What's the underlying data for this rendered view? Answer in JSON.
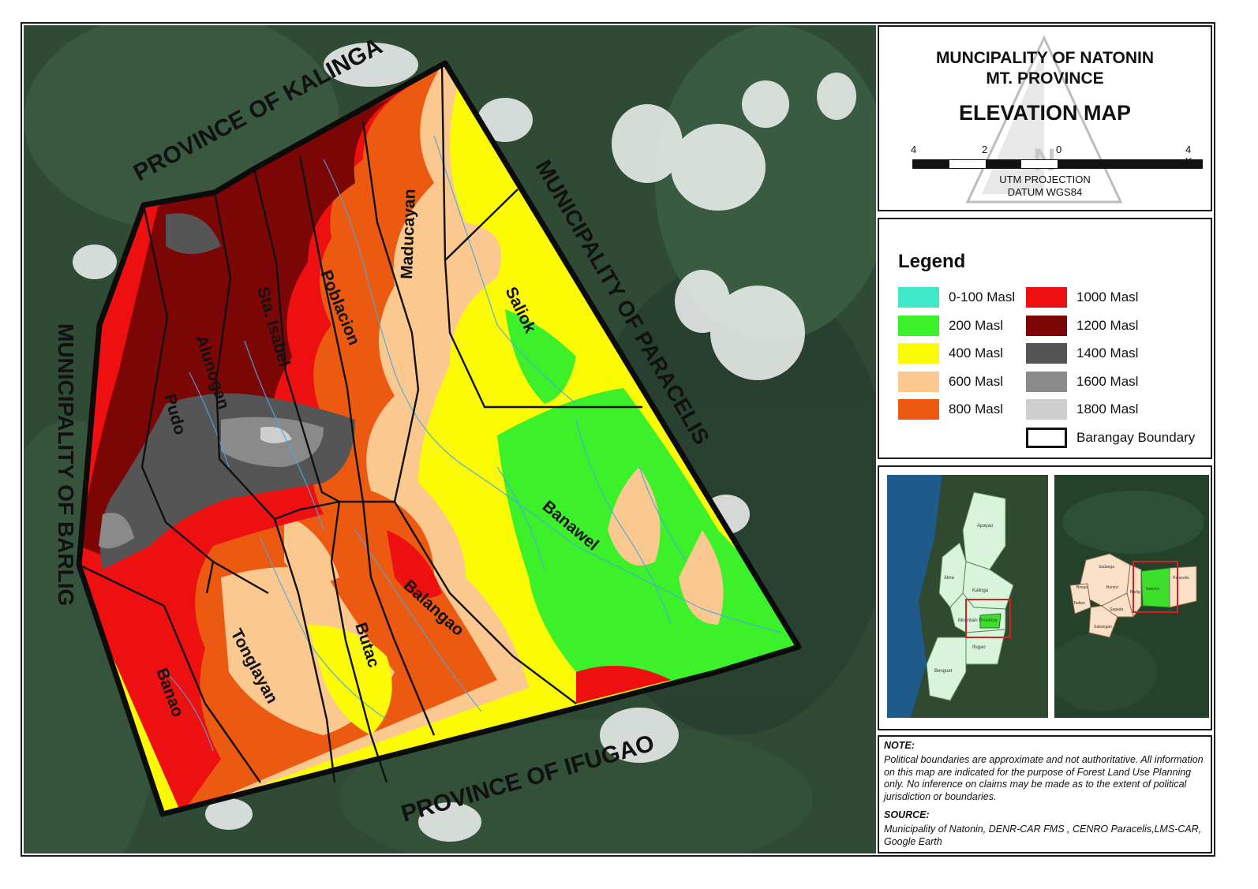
{
  "title": {
    "line1": "MUNCIPALITY OF NATONIN",
    "line2": "MT. PROVINCE",
    "line3": "ELEVATION MAP"
  },
  "scale": {
    "labels": [
      "4",
      "2",
      "0",
      "4 Km"
    ],
    "projection": "UTM PROJECTION",
    "datum": "DATUM WGS84"
  },
  "legend": {
    "title": "Legend",
    "items": [
      {
        "label": "0-100 Masl",
        "color": "#3ee8c8"
      },
      {
        "label": "200 Masl",
        "color": "#3cf02a"
      },
      {
        "label": "400 Masl",
        "color": "#fbfb06"
      },
      {
        "label": "600 Masl",
        "color": "#fbc98f"
      },
      {
        "label": "800 Masl",
        "color": "#ec5a12"
      },
      {
        "label": "1000 Masl",
        "color": "#ee1010"
      },
      {
        "label": "1200 Masl",
        "color": "#7c0606"
      },
      {
        "label": "1400 Masl",
        "color": "#555555"
      },
      {
        "label": "1600 Masl",
        "color": "#8a8a8a"
      },
      {
        "label": "1800 Masl",
        "color": "#cfcfcf"
      },
      {
        "label": "Barangay Boundary",
        "color": "#ffffff"
      }
    ]
  },
  "map": {
    "neighbors": {
      "north": "PROVINCE OF KALINGA",
      "east": "MUNICIPALITY OF PARACELIS",
      "west": "MUNICIPALITY OF BARLIG",
      "south": "PROVINCE OF IFUGAO"
    },
    "barangays": [
      "Maducayan",
      "Poblacion",
      "Sta. Isabel",
      "Alunogan",
      "Pudo",
      "Saliok",
      "Banawel",
      "Balangao",
      "Butac",
      "Tonglayan",
      "Banao"
    ]
  },
  "insets": {
    "region": {
      "provinces": [
        "Apayao",
        "Abra",
        "Kalinga",
        "Mountain Province",
        "Ifugao",
        "Benguet"
      ]
    },
    "province": {
      "municipalities": [
        "Sadanga",
        "Besao",
        "Bontoc",
        "Sabangan",
        "Tadian",
        "Sagada",
        "Barlig",
        "Natonin",
        "Paracelis"
      ]
    }
  },
  "note": {
    "title": "NOTE:",
    "text": "Political boundaries are approximate and not authoritative. All information on this map are indicated for the purpose  of Forest Land Use Planning only. No inference on claims may be made as to the extent of political jurisdiction or boundaries.",
    "source_title": "SOURCE:",
    "source_text": "Municipality of Natonin, DENR-CAR FMS , CENRO Paracelis,LMS-CAR, Google Earth"
  },
  "colors": {
    "frame": "#1a1a1a",
    "satellite_forest": "#2f4a35",
    "inset_highlight": "#d62020"
  }
}
